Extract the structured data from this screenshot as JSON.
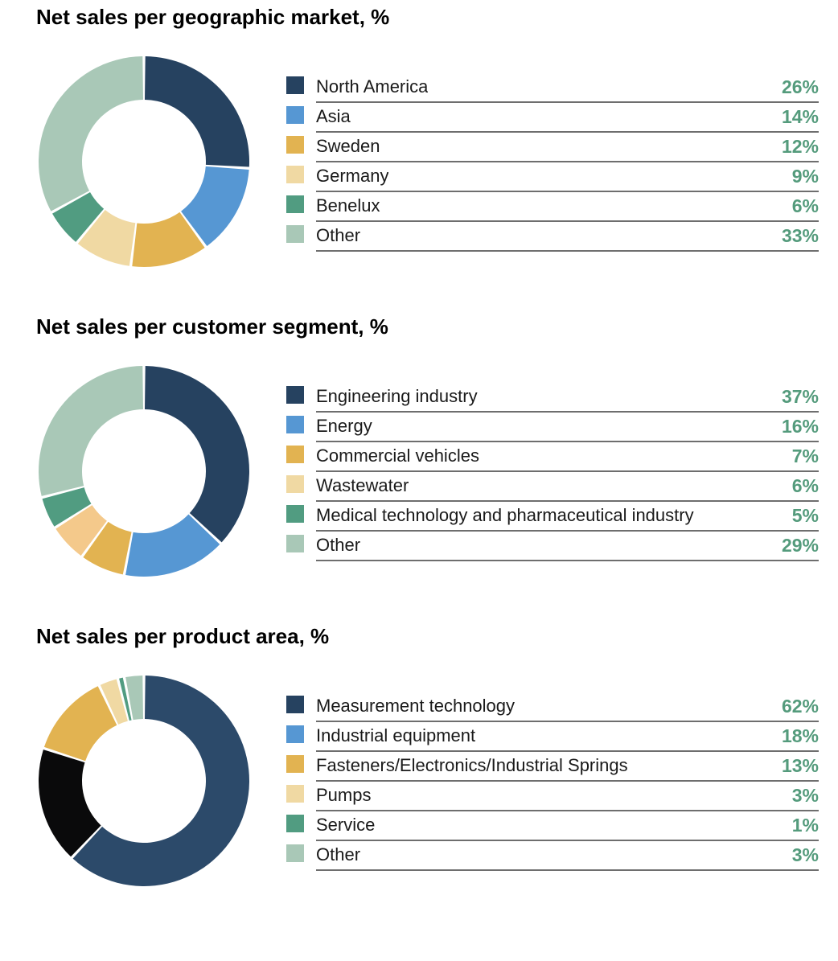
{
  "page": {
    "background": "#ffffff"
  },
  "styles": {
    "percent_color": "#549b7c",
    "rule_color": "#6e6e6e",
    "title_color": "#000000"
  },
  "chart_data": [
    {
      "type": "pie",
      "variant": "donut",
      "title": "Net sales per geographic market, %",
      "unit": "%",
      "legend_position": "right",
      "start_angle_deg": 0,
      "direction": "clockwise",
      "inner_radius_ratio": 0.585,
      "items": [
        {
          "label": "North America",
          "value": 26,
          "percent_label": "26%",
          "color": "#264260"
        },
        {
          "label": "Asia",
          "value": 14,
          "percent_label": "14%",
          "color": "#5697d3"
        },
        {
          "label": "Sweden",
          "value": 12,
          "percent_label": "12%",
          "color": "#e2b351"
        },
        {
          "label": "Germany",
          "value": 9,
          "percent_label": "9%",
          "color": "#f0d9a3"
        },
        {
          "label": "Benelux",
          "value": 6,
          "percent_label": "6%",
          "color": "#519c81"
        },
        {
          "label": "Other",
          "value": 33,
          "percent_label": "33%",
          "color": "#a9c8b7"
        }
      ]
    },
    {
      "type": "pie",
      "variant": "donut",
      "title": "Net sales per customer segment, %",
      "unit": "%",
      "legend_position": "right",
      "start_angle_deg": 0,
      "direction": "clockwise",
      "inner_radius_ratio": 0.585,
      "items": [
        {
          "label": "Engineering industry",
          "value": 37,
          "percent_label": "37%",
          "color": "#264260"
        },
        {
          "label": "Energy",
          "value": 16,
          "percent_label": "16%",
          "color": "#5697d3"
        },
        {
          "label": "Commercial vehicles",
          "value": 7,
          "percent_label": "7%",
          "color": "#e2b351"
        },
        {
          "label": "Wastewater",
          "value": 6,
          "percent_label": "6%",
          "color": "#f0d9a3",
          "slice_color": "#f4c98b"
        },
        {
          "label": "Medical technology and pharmaceutical industry",
          "value": 5,
          "percent_label": "5%",
          "color": "#519c81"
        },
        {
          "label": "Other",
          "value": 29,
          "percent_label": "29%",
          "color": "#a9c8b7"
        }
      ]
    },
    {
      "type": "pie",
      "variant": "donut",
      "title": "Net sales per product area, %",
      "unit": "%",
      "legend_position": "right",
      "start_angle_deg": 0,
      "direction": "clockwise",
      "inner_radius_ratio": 0.585,
      "items": [
        {
          "label": "Measurement technology",
          "value": 62,
          "percent_label": "62%",
          "color": "#264260",
          "slice_color": "#2c4a6a"
        },
        {
          "label": "Industrial equipment",
          "value": 18,
          "percent_label": "18%",
          "color": "#5697d3",
          "slice_color": "#0a0a0b"
        },
        {
          "label": "Fasteners/Electronics/Industrial Springs",
          "value": 13,
          "percent_label": "13%",
          "color": "#e2b351"
        },
        {
          "label": "Pumps",
          "value": 3,
          "percent_label": "3%",
          "color": "#f0d9a3"
        },
        {
          "label": "Service",
          "value": 1,
          "percent_label": "1%",
          "color": "#519c81"
        },
        {
          "label": "Other",
          "value": 3,
          "percent_label": "3%",
          "color": "#a9c8b7"
        }
      ]
    }
  ]
}
